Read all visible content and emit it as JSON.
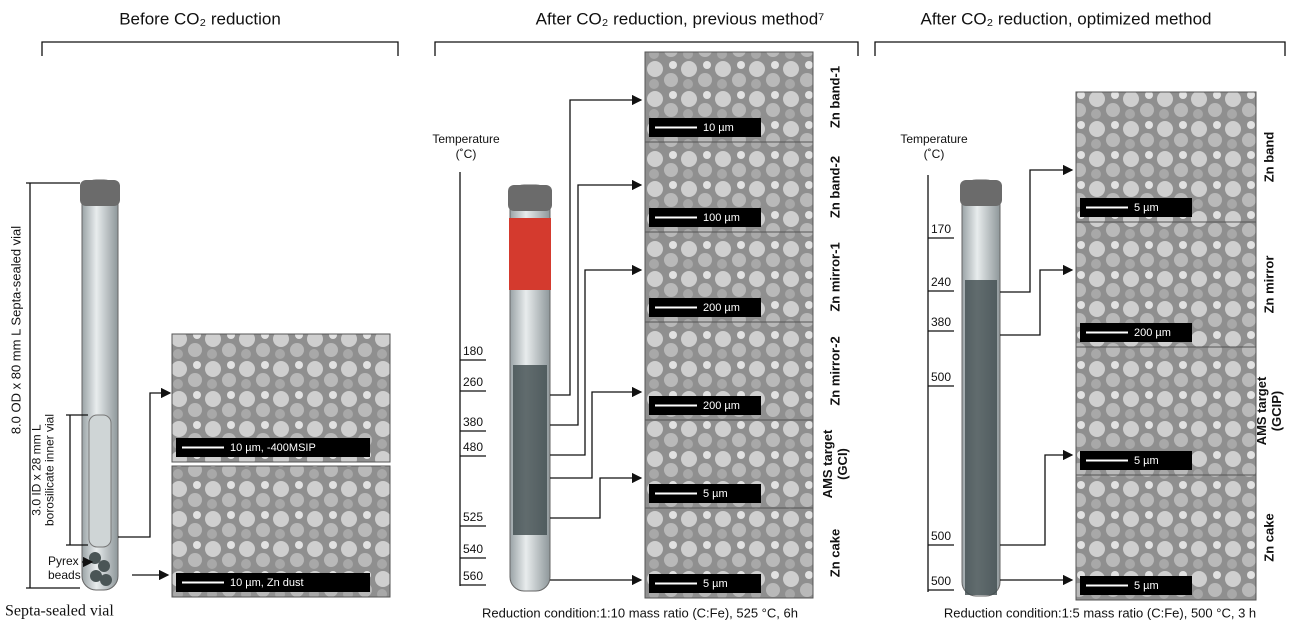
{
  "panels": [
    {
      "title": "Before CO₂ reduction",
      "outer_dim": "8.0 OD x 80 mm L  Septa-sealed vial",
      "inner_dim": [
        "3.0 ID x 28 mm L",
        "borosilicate inner vial"
      ],
      "beads": [
        "Pyrex",
        "beads"
      ],
      "images": [
        {
          "scale": "10 µm, -400MSIP"
        },
        {
          "scale": "10 µm, Zn dust"
        }
      ],
      "caption": "Septa-sealed vial"
    },
    {
      "title": "After CO₂ reduction, previous method⁷",
      "axis_title": [
        "Temperature",
        "(˚C)"
      ],
      "temperatures": [
        180,
        260,
        380,
        480,
        525,
        540,
        560
      ],
      "images": [
        {
          "scale": "10 µm",
          "label": [
            "Zn band-1"
          ]
        },
        {
          "scale": "100 µm",
          "label": [
            "Zn band-2"
          ]
        },
        {
          "scale": "200 µm",
          "label": [
            "Zn mirror-1"
          ]
        },
        {
          "scale": "200 µm",
          "label": [
            "Zn mirror-2"
          ]
        },
        {
          "scale": "5 µm",
          "label": [
            "AMS target",
            "(GCI)"
          ]
        },
        {
          "scale": "5 µm",
          "label": [
            "Zn cake"
          ]
        }
      ],
      "caption": "Reduction condition:1:10 mass ratio (C:Fe), 525 °C, 6h"
    },
    {
      "title": "After CO₂ reduction, optimized method",
      "axis_title": [
        "Temperature",
        "(˚C)"
      ],
      "temperatures": [
        170,
        240,
        380,
        500,
        500,
        500
      ],
      "images": [
        {
          "scale": "5 µm",
          "label": [
            "Zn band"
          ]
        },
        {
          "scale": "200 µm",
          "label": [
            "Zn mirror"
          ]
        },
        {
          "scale": "5 µm",
          "label": [
            "AMS target",
            "(GCIP)"
          ]
        },
        {
          "scale": "5 µm",
          "label": [
            "Zn cake"
          ]
        }
      ],
      "caption": "Reduction condition:1:5 mass ratio (C:Fe), 500 °C, 3 h"
    }
  ]
}
